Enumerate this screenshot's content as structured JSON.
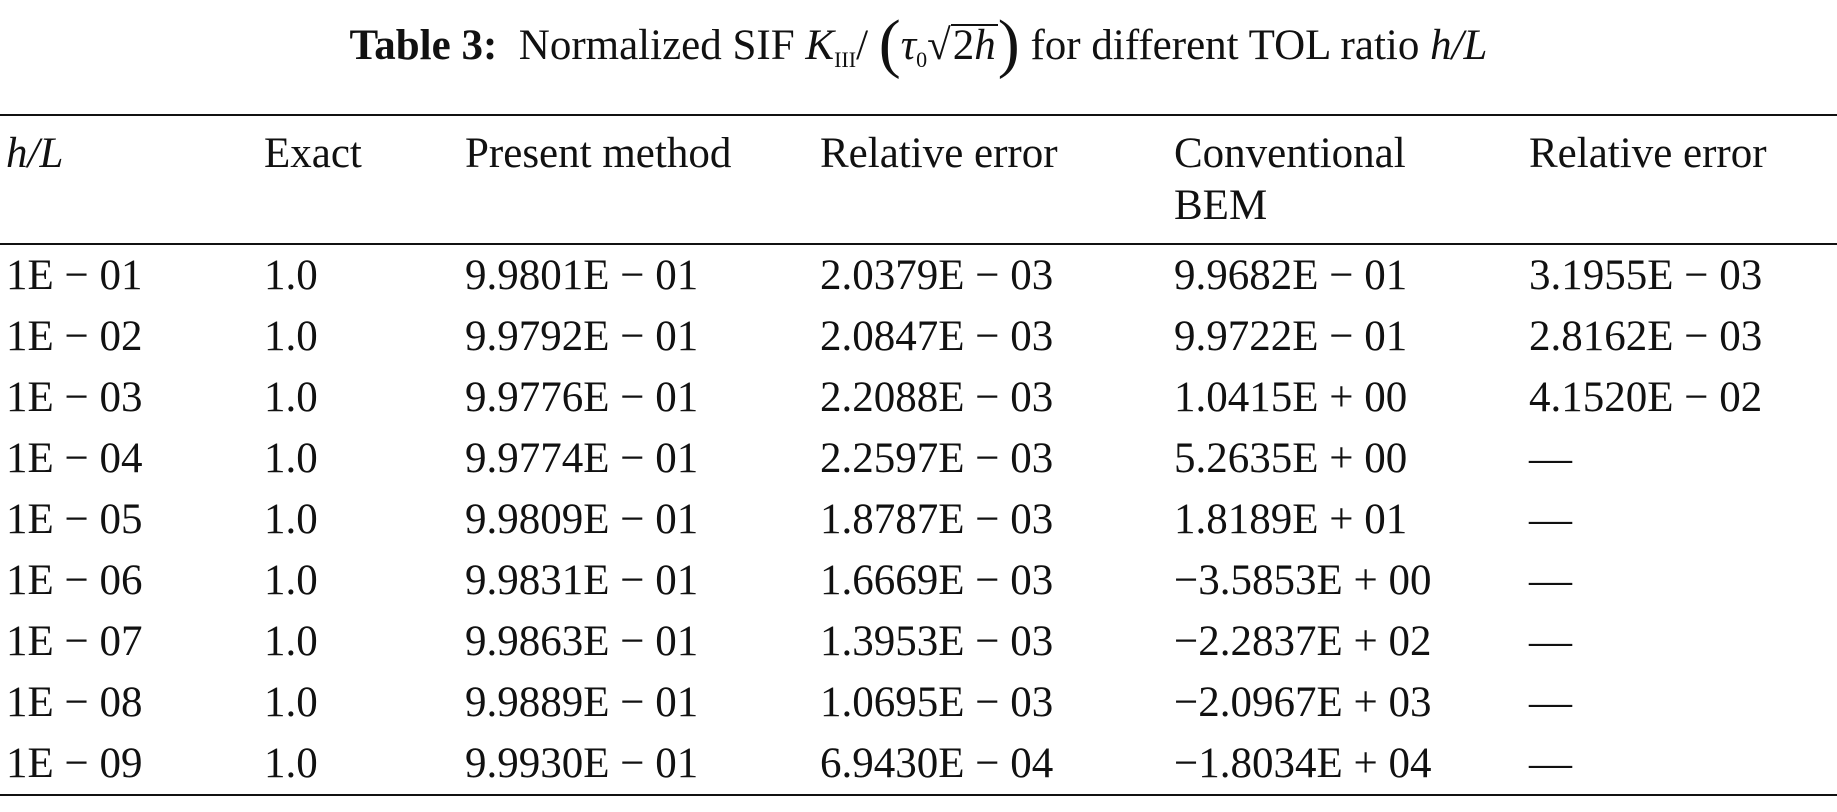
{
  "caption": {
    "label": "Table 3:",
    "text_before": "Normalized SIF ",
    "k": "K",
    "k_sub": "III",
    "slash": "/",
    "tau": "τ",
    "tau_sub": "0",
    "sqrt_num": "2",
    "sqrt_var": "h",
    "text_after": " for different TOL ratio ",
    "ratio": "h/L"
  },
  "table": {
    "header": [
      "h/L",
      "Exact",
      "Present method",
      "Relative error",
      "Conventional BEM",
      "Relative error"
    ],
    "rows": [
      [
        "1E − 01",
        "1.0",
        "9.9801E − 01",
        "2.0379E − 03",
        "9.9682E − 01",
        "3.1955E − 03"
      ],
      [
        "1E − 02",
        "1.0",
        "9.9792E − 01",
        "2.0847E − 03",
        "9.9722E − 01",
        "2.8162E − 03"
      ],
      [
        "1E − 03",
        "1.0",
        "9.9776E − 01",
        "2.2088E − 03",
        "1.0415E + 00",
        "4.1520E − 02"
      ],
      [
        "1E − 04",
        "1.0",
        "9.9774E − 01",
        "2.2597E − 03",
        "5.2635E + 00",
        "—"
      ],
      [
        "1E − 05",
        "1.0",
        "9.9809E − 01",
        "1.8787E − 03",
        "1.8189E + 01",
        "—"
      ],
      [
        "1E − 06",
        "1.0",
        "9.9831E − 01",
        "1.6669E − 03",
        "−3.5853E + 00",
        "—"
      ],
      [
        "1E − 07",
        "1.0",
        "9.9863E − 01",
        "1.3953E − 03",
        "−2.2837E + 02",
        "—"
      ],
      [
        "1E − 08",
        "1.0",
        "9.9889E − 01",
        "1.0695E − 03",
        "−2.0967E + 03",
        "—"
      ],
      [
        "1E − 09",
        "1.0",
        "9.9930E − 01",
        "6.9430E − 04",
        "−1.8034E + 04",
        "—"
      ]
    ]
  }
}
